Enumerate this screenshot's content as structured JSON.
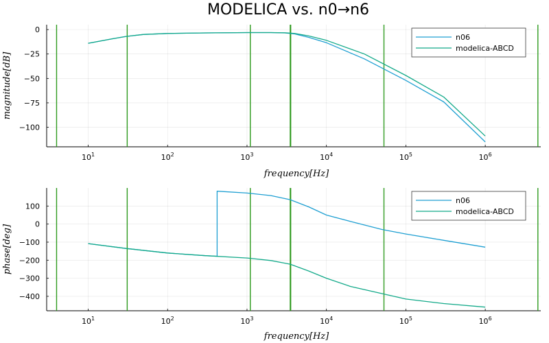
{
  "title": "MODELICA  vs. n0→n6",
  "colors": {
    "n06": "#1e9fd2",
    "modelica": "#12a989",
    "vline": "#2e9a1e"
  },
  "chart_data": [
    {
      "type": "line",
      "xscale": "log",
      "xlim": [
        3,
        5000000
      ],
      "ylim": [
        -120,
        5
      ],
      "xticks": [
        10,
        100,
        1000,
        10000,
        100000,
        1000000
      ],
      "xtick_labels": [
        "10^1",
        "10^2",
        "10^3",
        "10^4",
        "10^5",
        "10^6"
      ],
      "yticks": [
        0,
        -25,
        -50,
        -75,
        -100
      ],
      "ytick_labels": [
        "0",
        "−25",
        "−50",
        "−75",
        "−100"
      ],
      "xlabel": "frequency[Hz]",
      "ylabel": "magnitude[dB]",
      "grid": true,
      "legend": "top-right",
      "vlines": [
        4,
        31,
        1100,
        3500,
        3550,
        53000,
        4600000
      ],
      "series": [
        {
          "name": "n06",
          "x": [
            10,
            20,
            30,
            50,
            100,
            300,
            1000,
            2000,
            3000,
            4000,
            6000,
            10000,
            30000,
            100000,
            300000,
            1000000
          ],
          "y": [
            -14,
            -9.5,
            -7,
            -5,
            -4,
            -3.4,
            -3.1,
            -3.1,
            -3.4,
            -4.5,
            -8,
            -13.5,
            -30,
            -52,
            -74,
            -115
          ]
        },
        {
          "name": "modelica-ABCD",
          "x": [
            10,
            20,
            30,
            50,
            100,
            300,
            1000,
            2000,
            3000,
            4000,
            6000,
            10000,
            30000,
            100000,
            300000,
            1000000
          ],
          "y": [
            -14,
            -9.5,
            -7,
            -5,
            -4,
            -3.4,
            -3.1,
            -3.1,
            -3.3,
            -4,
            -6.5,
            -11,
            -25,
            -47,
            -69,
            -109
          ]
        }
      ]
    },
    {
      "type": "line",
      "xscale": "log",
      "xlim": [
        3,
        5000000
      ],
      "ylim": [
        -480,
        200
      ],
      "xticks": [
        10,
        100,
        1000,
        10000,
        100000,
        1000000
      ],
      "xtick_labels": [
        "10^1",
        "10^2",
        "10^3",
        "10^4",
        "10^5",
        "10^6"
      ],
      "yticks": [
        100,
        0,
        -100,
        -200,
        -300,
        -400
      ],
      "ytick_labels": [
        "100",
        "0",
        "−100",
        "−200",
        "−300",
        "−400"
      ],
      "xlabel": "frequency[Hz]",
      "ylabel": "phase[deg]",
      "grid": true,
      "legend": "top-right",
      "vlines": [
        4,
        31,
        1100,
        3500,
        3550,
        53000,
        4600000
      ],
      "series": [
        {
          "name": "n06",
          "x": [
            10,
            30,
            100,
            200,
            300,
            420,
            420,
            1000,
            2000,
            3500,
            6000,
            10000,
            20000,
            50000,
            100000,
            300000,
            1000000
          ],
          "y": [
            -108,
            -135,
            -160,
            -170,
            -175,
            -178,
            182,
            172,
            158,
            135,
            95,
            50,
            15,
            -30,
            -55,
            -90,
            -128
          ]
        },
        {
          "name": "modelica-ABCD",
          "x": [
            10,
            30,
            100,
            300,
            1000,
            2000,
            3500,
            6000,
            10000,
            20000,
            50000,
            100000,
            300000,
            1000000
          ],
          "y": [
            -108,
            -135,
            -160,
            -175,
            -188,
            -202,
            -222,
            -260,
            -300,
            -345,
            -385,
            -415,
            -440,
            -460
          ]
        }
      ]
    }
  ]
}
